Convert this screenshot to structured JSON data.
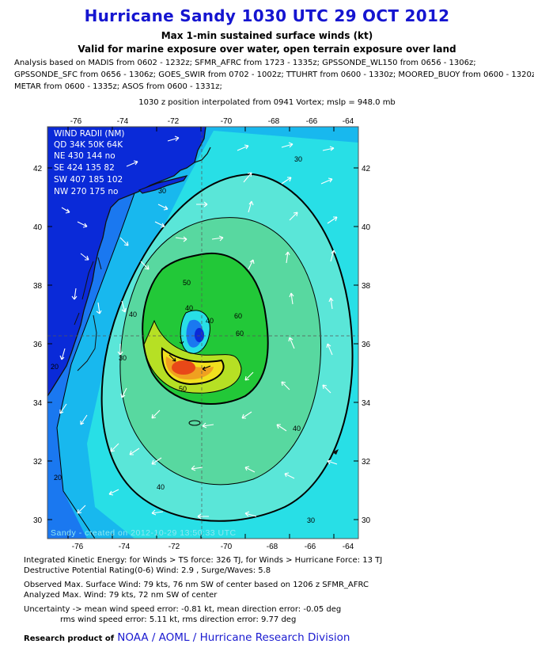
{
  "header": {
    "title": "Hurricane Sandy 1030 UTC 29 OCT 2012",
    "subtitle1": "Max 1-min sustained surface winds (kt)",
    "subtitle2": "Valid for marine exposure over water, open terrain exposure over land",
    "analysis_lines": [
      "Analysis based on MADIS from 0602 - 1232z; SFMR_AFRC from 1723 - 1335z; GPSSONDE_WL150 from 0656 - 1306z;",
      "GPSSONDE_SFC from 0656 - 1306z; GOES_SWIR from 0702 - 1002z; TTUHRT from 0600 - 1330z; MOORED_BUOY from 0600 - 1320z;",
      "METAR from 0600 - 1335z; ASOS from 0600 - 1331z;"
    ],
    "position_note": "1030 z position interpolated from 0941 Vortex; mslp = 948.0 mb"
  },
  "map": {
    "lon_labels": [
      "-76",
      "-74",
      "-72",
      "-70",
      "-68",
      "-66",
      "-64"
    ],
    "lat_labels": [
      "42",
      "40",
      "38",
      "36",
      "34",
      "32",
      "30"
    ],
    "contour_labels": [
      "30",
      "30",
      "40",
      "40",
      "50",
      "60",
      "60",
      "40",
      "20",
      "20",
      "30",
      "40",
      "40",
      "50",
      "30"
    ],
    "watermark": "Sandy - created on 2012-10-29 13:50:33 UTC",
    "wind_radii": {
      "title": "WIND RADII (NM)",
      "header": "QD 34K 50K 64K",
      "rows": [
        "NE 430 144  no",
        "SE 424 135  82",
        "SW 407 185 102",
        "NW 270 175  no"
      ]
    },
    "colors": {
      "ocean_low": "#0a2ad8",
      "land": "#0a2ad8",
      "band_20": "#1a78f0",
      "band_30": "#18b8ee",
      "band_40": "#28dfe6",
      "band_50": "#58e0b8",
      "band_60": "#20c838",
      "band_70": "#b0e020",
      "band_80": "#f0e020",
      "band_90": "#f0a020",
      "band_100": "#e84818"
    }
  },
  "footer": {
    "ike": "Integrated Kinetic Energy: for Winds > TS force: 326 TJ, for Winds > Hurricane Force: 13 TJ",
    "destructive": "Destructive Potential Rating(0-6)  Wind: 2.9 , Surge/Waves: 5.8",
    "observed": "Observed Max. Surface Wind: 79 kts, 76 nm SW of center based on 1206 z SFMR_AFRC",
    "analyzed": "Analyzed Max. Wind: 79 kts, 72 nm  SW of center",
    "uncertainty1": "Uncertainty -> mean wind speed error:  -0.81 kt, mean direction error:  -0.05 deg",
    "uncertainty2": "rms wind speed error: 5.11 kt, rms direction error: 9.77 deg",
    "credit_prefix": "Research product of",
    "credit_org": "NOAA  /  AOML  /  Hurricane Research Division"
  }
}
